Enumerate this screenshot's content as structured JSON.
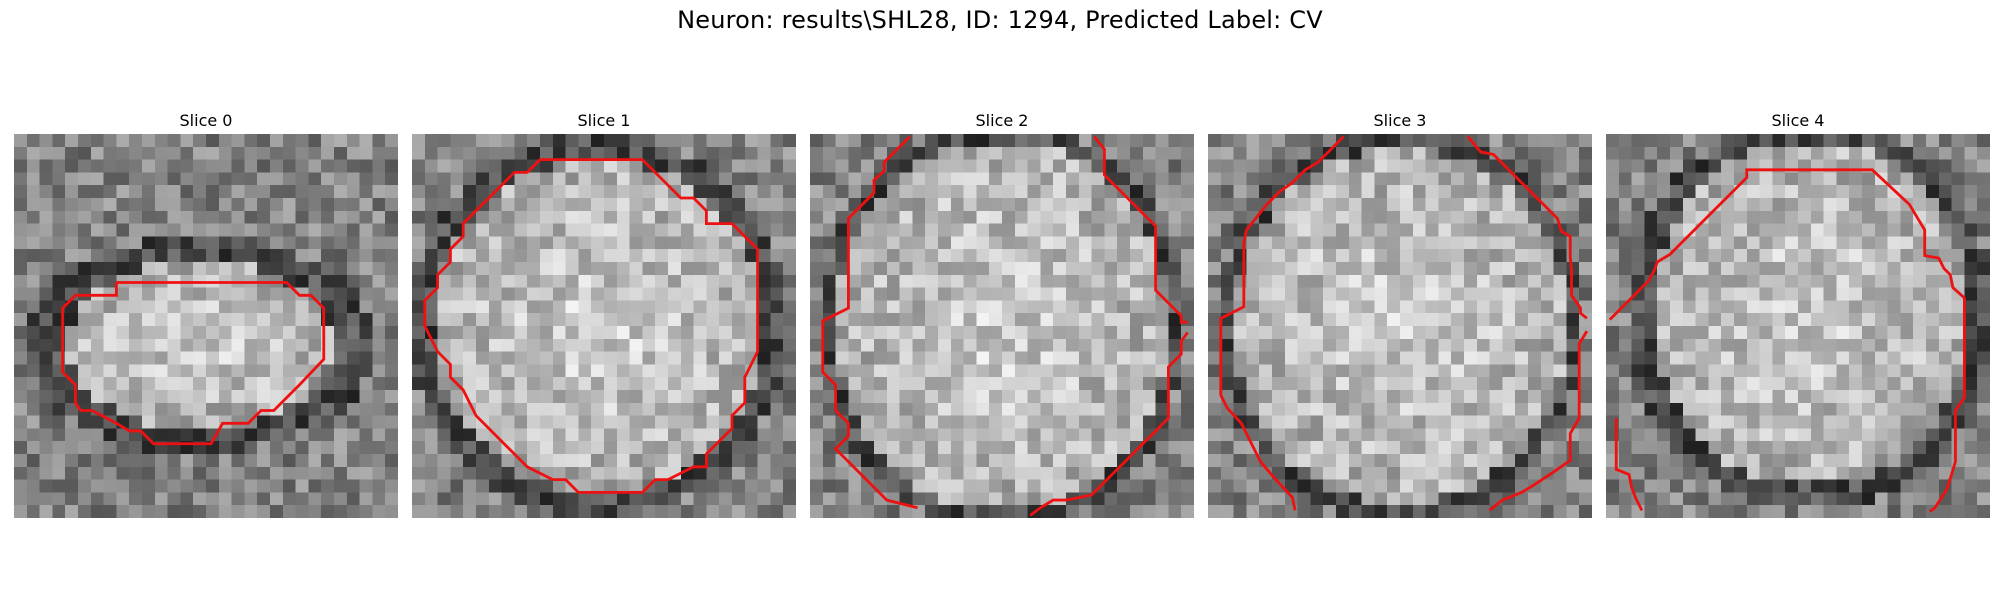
{
  "figure": {
    "title": "Neuron: results\\SHL28, ID: 1294, Predicted Label: CV"
  },
  "slices": [
    {
      "title": "Slice 0"
    },
    {
      "title": "Slice 1"
    },
    {
      "title": "Slice 2"
    },
    {
      "title": "Slice 3"
    },
    {
      "title": "Slice 4"
    }
  ],
  "style": {
    "contour_color": "#ee1111",
    "image_colormap": "gray"
  }
}
